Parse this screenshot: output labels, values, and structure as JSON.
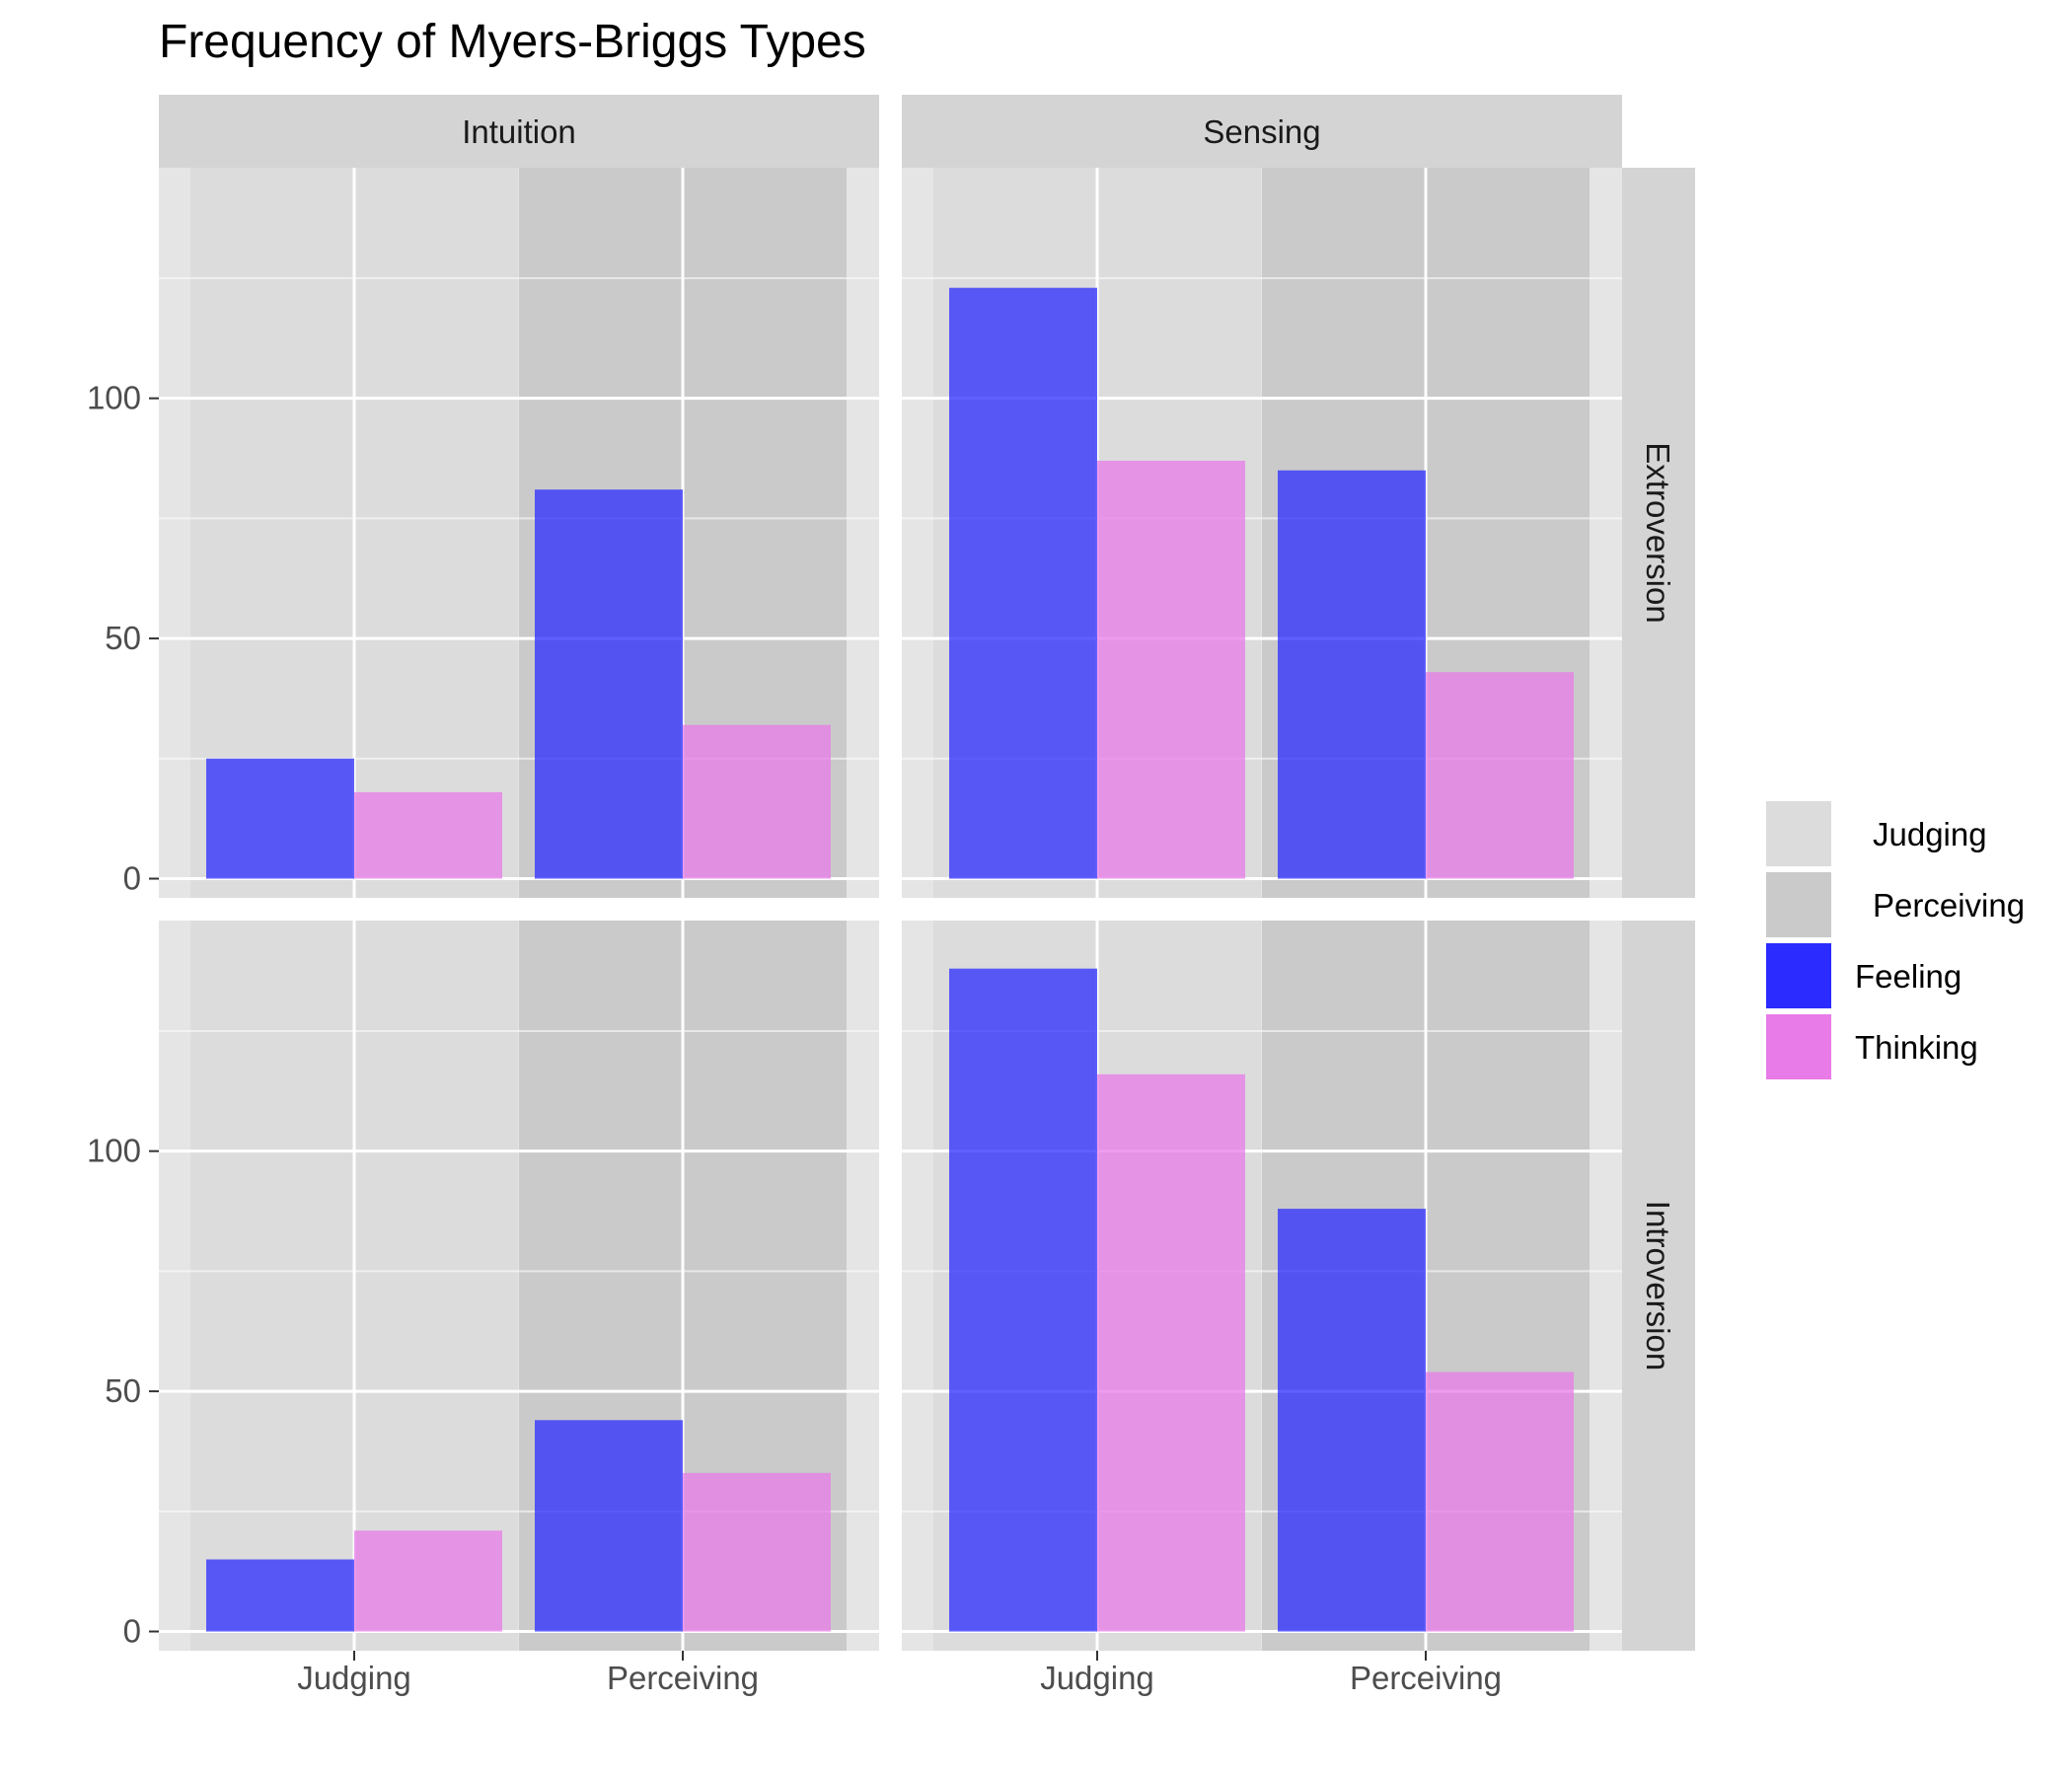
{
  "chart_data": {
    "type": "bar",
    "title": "Frequency of Myers-Briggs Types",
    "xlabel": "",
    "ylabel": "",
    "ylim": [
      -4,
      148
    ],
    "yticks": [
      0,
      50,
      100
    ],
    "categories": [
      "Judging",
      "Perceiving"
    ],
    "column_facets": [
      "Intuition",
      "Sensing"
    ],
    "row_facets": [
      "Extroversion",
      "Introversion"
    ],
    "series_names": [
      "Feeling",
      "Thinking"
    ],
    "background_legend": [
      "Judging",
      "Perceiving"
    ],
    "panels": [
      {
        "row": "Extroversion",
        "column": "Intuition",
        "series": [
          {
            "name": "Feeling",
            "values": [
              25,
              81
            ]
          },
          {
            "name": "Thinking",
            "values": [
              18,
              32
            ]
          }
        ]
      },
      {
        "row": "Extroversion",
        "column": "Sensing",
        "series": [
          {
            "name": "Feeling",
            "values": [
              123,
              85
            ]
          },
          {
            "name": "Thinking",
            "values": [
              87,
              43
            ]
          }
        ]
      },
      {
        "row": "Introversion",
        "column": "Intuition",
        "series": [
          {
            "name": "Feeling",
            "values": [
              15,
              44
            ]
          },
          {
            "name": "Thinking",
            "values": [
              21,
              33
            ]
          }
        ]
      },
      {
        "row": "Introversion",
        "column": "Sensing",
        "series": [
          {
            "name": "Feeling",
            "values": [
              138,
              88
            ]
          },
          {
            "name": "Thinking",
            "values": [
              116,
              54
            ]
          }
        ]
      }
    ],
    "grid": true,
    "legend_position": "right"
  },
  "colors": {
    "panel_background": "#e5e5e5",
    "strip_background": "#d4d4d4",
    "judging_band": "#dcdcdc",
    "perceiving_band": "#cacaca",
    "feeling": "#2b2bff",
    "thinking": "#e87be8",
    "gridline": "#ffffff"
  }
}
